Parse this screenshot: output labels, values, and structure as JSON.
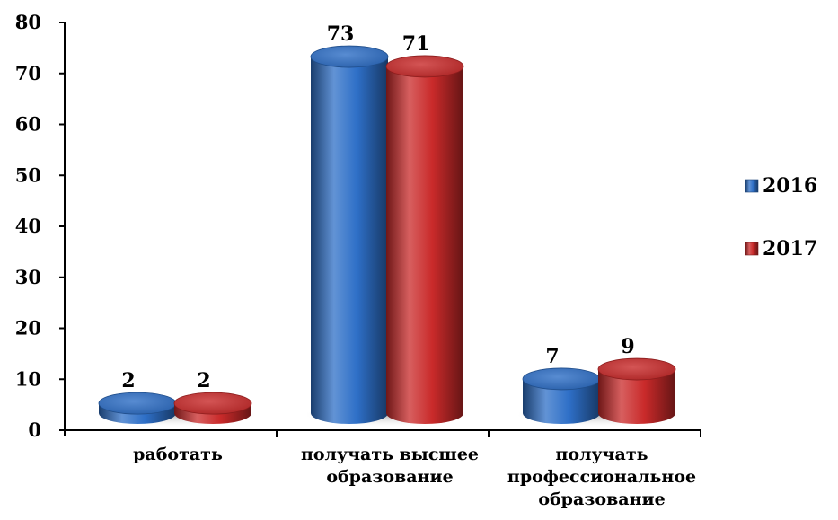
{
  "chart_data": {
    "type": "bar",
    "style": "3d-cylinder",
    "title": "",
    "xlabel": "",
    "ylabel": "",
    "ylim": [
      0,
      80
    ],
    "yticks": [
      0,
      10,
      20,
      30,
      40,
      50,
      60,
      70,
      80
    ],
    "categories": [
      [
        "работать"
      ],
      [
        "получать высшее",
        "образование"
      ],
      [
        "получать",
        "профессиональное",
        "образование"
      ]
    ],
    "series": [
      {
        "name": "2016",
        "values": [
          2,
          73,
          7
        ],
        "color": "#2e6fc7"
      },
      {
        "name": "2017",
        "values": [
          2,
          71,
          9
        ],
        "color": "#c92a2a"
      }
    ],
    "data_labels": true,
    "grid": false,
    "legend": "right"
  }
}
